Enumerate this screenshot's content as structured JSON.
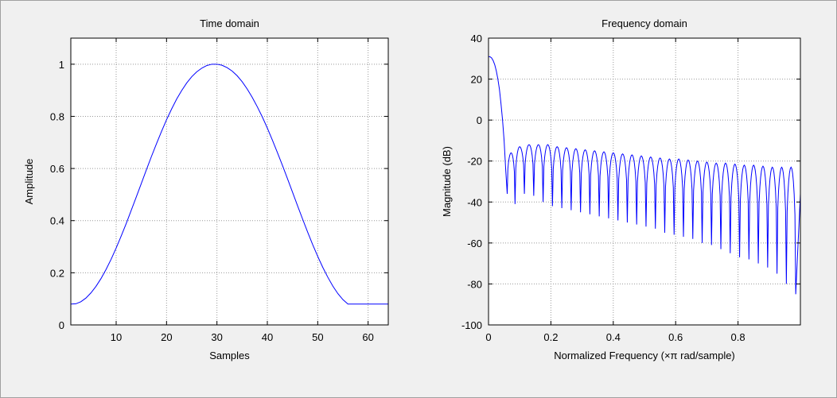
{
  "chart_data": [
    {
      "type": "line",
      "title": "Time domain",
      "xlabel": "Samples",
      "ylabel": "Amplitude",
      "xlim": [
        1,
        64
      ],
      "ylim": [
        0,
        1.1
      ],
      "xticks": [
        10,
        20,
        30,
        40,
        50,
        60
      ],
      "yticks": [
        0,
        0.2,
        0.4,
        0.6,
        0.8,
        1
      ],
      "ytick_labels": [
        "0",
        "0.2",
        "0.4",
        "0.6",
        "0.8",
        "1"
      ],
      "grid": true,
      "line_color": "#0000ff",
      "series": [
        {
          "x": [
            1,
            2,
            3,
            4,
            5,
            6,
            7,
            8,
            9,
            10,
            11,
            12,
            13,
            14,
            15,
            16,
            17,
            18,
            19,
            20,
            21,
            22,
            23,
            24,
            25,
            26,
            27,
            28,
            29,
            30,
            31,
            32,
            33,
            34,
            35,
            36,
            37,
            38,
            39,
            40,
            41,
            42,
            43,
            44,
            45,
            46,
            47,
            48,
            49,
            50,
            51,
            52,
            53,
            54,
            55,
            56,
            57,
            58,
            59,
            60,
            61,
            62,
            63,
            64
          ],
          "values": [
            0.08,
            0.081,
            0.089,
            0.103,
            0.123,
            0.148,
            0.178,
            0.213,
            0.252,
            0.295,
            0.341,
            0.389,
            0.44,
            0.491,
            0.543,
            0.595,
            0.646,
            0.695,
            0.742,
            0.787,
            0.828,
            0.866,
            0.899,
            0.928,
            0.952,
            0.971,
            0.985,
            0.995,
            1.0,
            1.0,
            0.996,
            0.987,
            0.974,
            0.956,
            0.933,
            0.905,
            0.873,
            0.837,
            0.798,
            0.755,
            0.709,
            0.661,
            0.612,
            0.561,
            0.509,
            0.457,
            0.406,
            0.356,
            0.308,
            0.263,
            0.221,
            0.183,
            0.149,
            0.12,
            0.097,
            0.08,
            0.08,
            0.08,
            0.08,
            0.08,
            0.08,
            0.08,
            0.08,
            0.08
          ]
        }
      ]
    },
    {
      "type": "line",
      "title": "Frequency domain",
      "xlabel": "Normalized Frequency  (×π rad/sample)",
      "ylabel": "Magnitude (dB)",
      "xlim": [
        0,
        1
      ],
      "ylim": [
        -100,
        40
      ],
      "xticks": [
        0,
        0.2,
        0.4,
        0.6,
        0.8
      ],
      "xtick_labels": [
        "0",
        "0.2",
        "0.4",
        "0.6",
        "0.8"
      ],
      "yticks": [
        -100,
        -80,
        -60,
        -40,
        -20,
        0,
        20,
        40
      ],
      "grid": true,
      "line_color": "#0000ff",
      "series": [
        {
          "mainlobe": {
            "x": [
              0.0,
              0.005,
              0.01,
              0.015,
              0.02,
              0.025,
              0.03,
              0.035,
              0.04,
              0.045,
              0.05,
              0.055,
              0.06
            ],
            "values": [
              31,
              30.9,
              30.3,
              29.0,
              27.0,
              24.0,
              20.0,
              15.0,
              8.0,
              0.0,
              -10.0,
              -24.0,
              -36.0
            ]
          },
          "sidelobe_peaks": {
            "x": [
              0.07,
              0.1,
              0.13,
              0.16,
              0.19,
              0.22,
              0.25,
              0.28,
              0.31,
              0.34,
              0.37,
              0.4,
              0.43,
              0.46,
              0.49,
              0.52,
              0.55,
              0.58,
              0.61,
              0.64,
              0.67,
              0.7,
              0.73,
              0.76,
              0.79,
              0.82,
              0.85,
              0.88,
              0.91,
              0.94,
              0.97
            ],
            "values": [
              -16,
              -13,
              -12,
              -12,
              -12,
              -13,
              -13.5,
              -14,
              -14.5,
              -15,
              -15.5,
              -16,
              -16.5,
              -17,
              -17.5,
              -18,
              -18.5,
              -19,
              -19,
              -19.5,
              -20,
              -20.5,
              -21,
              -21,
              -21.5,
              -22,
              -22,
              -22.5,
              -23,
              -23,
              -23
            ]
          },
          "nulls": {
            "x": [
              0.06,
              0.085,
              0.115,
              0.145,
              0.175,
              0.205,
              0.235,
              0.265,
              0.295,
              0.325,
              0.355,
              0.385,
              0.415,
              0.445,
              0.475,
              0.505,
              0.535,
              0.565,
              0.595,
              0.625,
              0.655,
              0.685,
              0.715,
              0.745,
              0.775,
              0.805,
              0.835,
              0.865,
              0.895,
              0.925,
              0.955,
              0.985
            ],
            "values": [
              -36,
              -41,
              -36,
              -37,
              -40,
              -42,
              -43,
              -44,
              -45,
              -46,
              -47,
              -48,
              -49,
              -50,
              -51,
              -52,
              -53,
              -55,
              -56,
              -57,
              -58,
              -60,
              -61,
              -63,
              -65,
              -67,
              -68,
              -70,
              -72,
              -75,
              -80,
              -85
            ]
          },
          "end": {
            "x": 1.0,
            "value": -36
          }
        }
      ]
    }
  ]
}
